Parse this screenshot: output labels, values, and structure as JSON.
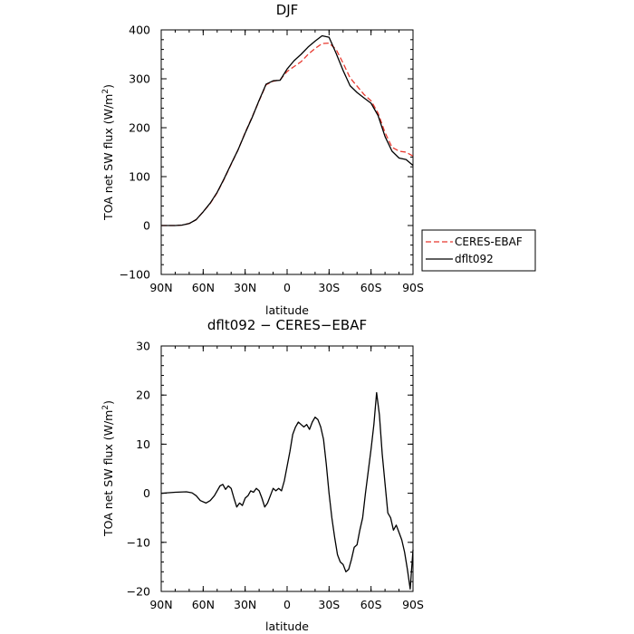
{
  "chart_data": [
    {
      "type": "line",
      "title": "DJF",
      "xlabel": "latitude",
      "ylabel": "TOA net SW flux (W/m²)",
      "ylabel_main": "TOA net SW flux (W/m",
      "ylabel_sup": "2",
      "ylabel_tail": ")",
      "x_ticks": [
        90,
        60,
        30,
        0,
        -30,
        -60,
        -90
      ],
      "x_tick_labels": [
        "90N",
        "60N",
        "30N",
        "0",
        "30S",
        "60S",
        "90S"
      ],
      "xlim": [
        90,
        -90
      ],
      "ylim": [
        -100,
        400
      ],
      "y_ticks": [
        -100,
        0,
        100,
        200,
        300,
        400
      ],
      "y_tick_labels": [
        "−100",
        "0",
        "100",
        "200",
        "300",
        "400"
      ],
      "grid": false,
      "legend_position": "outside-right",
      "series": [
        {
          "name": "CERES-EBAF",
          "color": "#e8382e",
          "dash": "dashed",
          "x": [
            90,
            80,
            75,
            70,
            65,
            60,
            55,
            50,
            45,
            40,
            35,
            30,
            25,
            20,
            15,
            10,
            5,
            0,
            -5,
            -10,
            -15,
            -20,
            -25,
            -30,
            -35,
            -40,
            -45,
            -50,
            -55,
            -60,
            -65,
            -70,
            -75,
            -80,
            -85,
            -90
          ],
          "y": [
            0,
            0,
            1,
            4,
            12,
            28,
            45,
            67,
            95,
            125,
            155,
            190,
            222,
            255,
            288,
            295,
            298,
            315,
            325,
            335,
            350,
            362,
            372,
            373,
            360,
            332,
            302,
            285,
            268,
            255,
            230,
            190,
            160,
            152,
            150,
            142
          ]
        },
        {
          "name": "dflt092",
          "color": "#000000",
          "dash": "solid",
          "x": [
            90,
            80,
            75,
            70,
            65,
            60,
            55,
            50,
            45,
            40,
            35,
            30,
            25,
            20,
            15,
            10,
            5,
            0,
            -5,
            -10,
            -15,
            -20,
            -25,
            -30,
            -35,
            -40,
            -45,
            -50,
            -55,
            -60,
            -65,
            -70,
            -75,
            -80,
            -85,
            -90
          ],
          "y": [
            0,
            0,
            1,
            4,
            12,
            28,
            46,
            68,
            96,
            126,
            155,
            189,
            221,
            256,
            289,
            296,
            297,
            320,
            337,
            350,
            365,
            377,
            388,
            385,
            352,
            317,
            286,
            272,
            261,
            250,
            225,
            182,
            152,
            138,
            135,
            123
          ]
        }
      ]
    },
    {
      "type": "line",
      "title": "dflt092 − CERES−EBAF",
      "xlabel": "latitude",
      "ylabel": "TOA net SW flux (W/m²)",
      "ylabel_main": "TOA net SW flux (W/m",
      "ylabel_sup": "2",
      "ylabel_tail": ")",
      "x_ticks": [
        90,
        60,
        30,
        0,
        -30,
        -60,
        -90
      ],
      "x_tick_labels": [
        "90N",
        "60N",
        "30N",
        "0",
        "30S",
        "60S",
        "90S"
      ],
      "xlim": [
        90,
        -90
      ],
      "ylim": [
        -20,
        30
      ],
      "y_ticks": [
        -20,
        -10,
        0,
        10,
        20,
        30
      ],
      "y_tick_labels": [
        "−20",
        "−10",
        "0",
        "10",
        "20",
        "30"
      ],
      "grid": false,
      "series": [
        {
          "color": "#000000",
          "dash": "solid",
          "x": [
            90,
            80,
            72,
            68,
            65,
            62,
            58,
            55,
            52,
            48,
            46,
            44,
            42,
            40,
            38,
            36,
            34,
            32,
            30,
            28,
            26,
            24,
            22,
            20,
            18,
            16,
            14,
            12,
            10,
            8,
            6,
            4,
            2,
            0,
            -2,
            -4,
            -6,
            -8,
            -10,
            -12,
            -14,
            -16,
            -18,
            -20,
            -22,
            -24,
            -26,
            -28,
            -30,
            -32,
            -34,
            -36,
            -38,
            -40,
            -42,
            -44,
            -46,
            -48,
            -50,
            -52,
            -54,
            -56,
            -58,
            -60,
            -62,
            -64,
            -66,
            -68,
            -70,
            -72,
            -74,
            -76,
            -78,
            -80,
            -82,
            -84,
            -86,
            -88,
            -90
          ],
          "y": [
            0,
            0.2,
            0.3,
            0.1,
            -0.5,
            -1.5,
            -2,
            -1.5,
            -0.5,
            1.5,
            1.8,
            0.8,
            1.5,
            1.0,
            -1.0,
            -2.8,
            -2.0,
            -2.5,
            -1.0,
            -0.5,
            0.5,
            0.2,
            1.0,
            0.5,
            -1.0,
            -2.8,
            -2.0,
            -0.5,
            1.0,
            0.5,
            1.0,
            0.5,
            2.5,
            5.5,
            8.5,
            12.0,
            13.5,
            14.5,
            14.0,
            13.5,
            14.0,
            13.0,
            14.5,
            15.5,
            15.0,
            13.5,
            11.0,
            6.0,
            0.0,
            -5.0,
            -9.0,
            -12.5,
            -14.0,
            -14.5,
            -16.0,
            -15.5,
            -13.5,
            -11.0,
            -10.5,
            -7.5,
            -5.0,
            0.0,
            4.5,
            9.0,
            14.0,
            20.5,
            16.0,
            8.0,
            2.0,
            -4.0,
            -5.0,
            -7.5,
            -6.5,
            -8.0,
            -9.5,
            -12.0,
            -15.5,
            -19.5,
            -11.5
          ]
        }
      ]
    }
  ]
}
